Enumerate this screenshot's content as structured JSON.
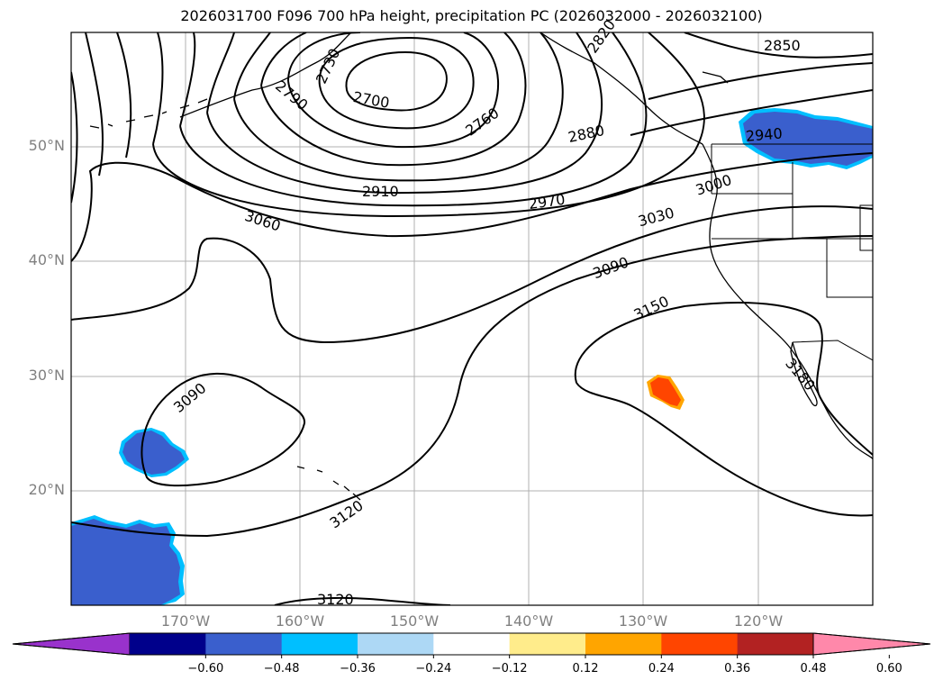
{
  "title": "2026031700 F096 700 hPa height, precipitation PC (2026032000 - 2026032100)",
  "colors": {
    "contour": "#000000",
    "land_outline": "#000000",
    "grid": "#b0b0b0",
    "tick_label": "#808080"
  },
  "axes": {
    "lat_ticks": [
      {
        "value": 50,
        "label": "50°N"
      },
      {
        "value": 40,
        "label": "40°N"
      },
      {
        "value": 30,
        "label": "30°N"
      },
      {
        "value": 20,
        "label": "20°N"
      }
    ],
    "lon_ticks": [
      {
        "value": -170,
        "label": "170°W"
      },
      {
        "value": -160,
        "label": "160°W"
      },
      {
        "value": -150,
        "label": "150°W"
      },
      {
        "value": -140,
        "label": "140°W"
      },
      {
        "value": -130,
        "label": "130°W"
      },
      {
        "value": -120,
        "label": "120°W"
      }
    ]
  },
  "contour_labels": [
    {
      "text": "2700",
      "key": "c2700"
    },
    {
      "text": "2730",
      "key": "c2730"
    },
    {
      "text": "2760",
      "key": "c2760"
    },
    {
      "text": "2790",
      "key": "c2790"
    },
    {
      "text": "2820",
      "key": "c2820"
    },
    {
      "text": "2850",
      "key": "c2850"
    },
    {
      "text": "2880",
      "key": "c2880"
    },
    {
      "text": "2910",
      "key": "c2910"
    },
    {
      "text": "2940",
      "key": "c2940"
    },
    {
      "text": "2970",
      "key": "c2970"
    },
    {
      "text": "3000",
      "key": "c3000"
    },
    {
      "text": "3030",
      "key": "c3030"
    },
    {
      "text": "3060",
      "key": "c3060"
    },
    {
      "text": "3090",
      "key": "c3090a"
    },
    {
      "text": "3090",
      "key": "c3090b"
    },
    {
      "text": "3120",
      "key": "c3120a"
    },
    {
      "text": "3120",
      "key": "c3120b"
    },
    {
      "text": "3150",
      "key": "c3150"
    },
    {
      "text": "3180",
      "key": "c3180"
    }
  ],
  "colorbar": {
    "ticks": [
      "−0.60",
      "−0.48",
      "−0.36",
      "−0.24",
      "−0.12",
      "0.12",
      "0.24",
      "0.36",
      "0.48",
      "0.60"
    ],
    "colors": [
      "#9932cc",
      "#00008b",
      "#3a5fcd",
      "#00bfff",
      "#add8f5",
      "#ffffff",
      "#ffec8b",
      "#ffa500",
      "#ff4500",
      "#b22222",
      "#ff88aa"
    ]
  }
}
